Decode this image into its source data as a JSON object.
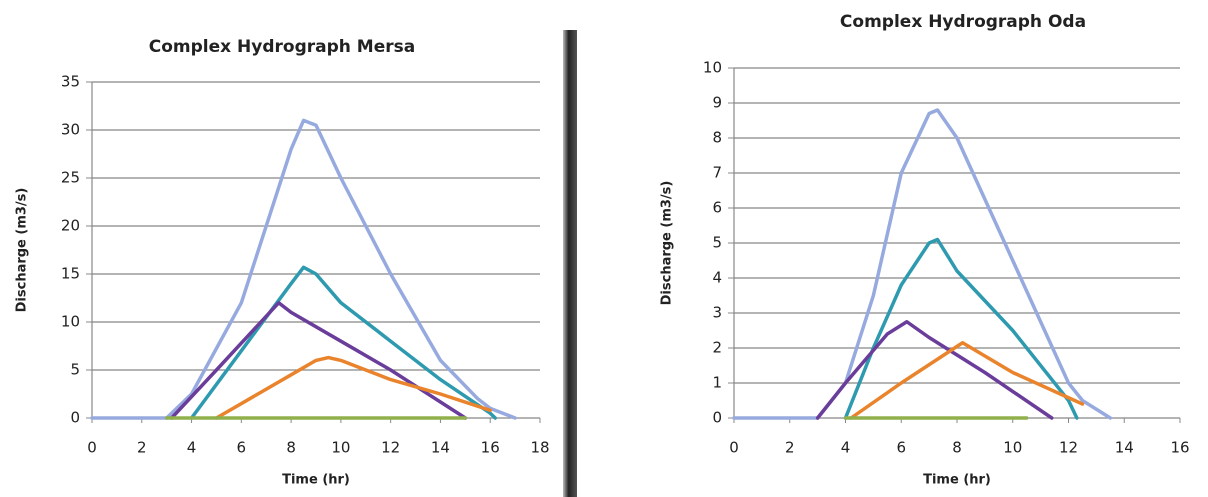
{
  "chart_data": [
    {
      "type": "line",
      "title": "Complex Hydrograph Mersa",
      "xlabel": "Time (hr)",
      "ylabel": "Discharge (m3/s)",
      "xlim": [
        0,
        18
      ],
      "xticks": [
        0,
        2,
        4,
        6,
        8,
        10,
        12,
        14,
        16,
        18
      ],
      "ylim": [
        0,
        35
      ],
      "yticks": [
        0,
        5,
        10,
        15,
        20,
        25,
        30,
        35
      ],
      "grid": true,
      "series": [
        {
          "color": "#97aadf",
          "x": [
            0,
            3,
            4,
            6,
            7,
            8,
            8.5,
            9,
            10,
            12,
            14,
            15.5,
            16,
            17
          ],
          "values": [
            0,
            0,
            2.5,
            12,
            20,
            28,
            31,
            30.5,
            25,
            15,
            6,
            2,
            1,
            0
          ]
        },
        {
          "color": "#2e9ab0",
          "x": [
            4,
            6,
            8,
            8.5,
            9,
            10,
            12,
            14,
            16,
            16.2
          ],
          "values": [
            0,
            7,
            14,
            15.7,
            15,
            12,
            8,
            4,
            0.5,
            0
          ]
        },
        {
          "color": "#6a3d9a",
          "x": [
            3.2,
            5,
            7.5,
            8,
            10,
            12,
            15
          ],
          "values": [
            0,
            5,
            12,
            11,
            8,
            5,
            0
          ]
        },
        {
          "color": "#ea842c",
          "x": [
            5,
            8,
            9,
            9.5,
            10,
            12,
            14,
            16
          ],
          "values": [
            0,
            4.5,
            6,
            6.3,
            6,
            4,
            2.5,
            0.8
          ]
        },
        {
          "color": "#8fb04a",
          "x": [
            3,
            15
          ],
          "values": [
            0,
            0
          ]
        }
      ]
    },
    {
      "type": "line",
      "title": "Complex Hydrograph Oda",
      "xlabel": "Time (hr)",
      "ylabel": "Discharge (m3/s)",
      "xlim": [
        0,
        16
      ],
      "xticks": [
        0,
        2,
        4,
        6,
        8,
        10,
        12,
        14,
        16
      ],
      "ylim": [
        0,
        10
      ],
      "yticks": [
        0,
        1,
        2,
        3,
        4,
        5,
        6,
        7,
        8,
        9,
        10
      ],
      "grid": true,
      "series": [
        {
          "color": "#97aadf",
          "x": [
            0,
            3,
            3.5,
            4,
            5,
            6,
            7,
            7.3,
            8,
            10,
            12,
            12.5,
            13.5
          ],
          "values": [
            0,
            0,
            0.5,
            1,
            3.5,
            7,
            8.7,
            8.8,
            8,
            4.5,
            1,
            0.5,
            0
          ]
        },
        {
          "color": "#2e9ab0",
          "x": [
            4,
            5,
            6,
            7,
            7.3,
            8,
            10,
            12,
            12.3
          ],
          "values": [
            0,
            2,
            3.8,
            5,
            5.1,
            4.2,
            2.5,
            0.5,
            0
          ]
        },
        {
          "color": "#6a3d9a",
          "x": [
            3,
            4,
            5.5,
            6.2,
            7,
            9,
            11.4
          ],
          "values": [
            0,
            1,
            2.4,
            2.75,
            2.3,
            1.3,
            0
          ]
        },
        {
          "color": "#ea842c",
          "x": [
            4.2,
            6,
            8.2,
            10,
            12.5
          ],
          "values": [
            0,
            1,
            2.15,
            1.3,
            0.4
          ]
        },
        {
          "color": "#8fb04a",
          "x": [
            4,
            10.5
          ],
          "values": [
            0,
            0
          ]
        }
      ]
    }
  ]
}
